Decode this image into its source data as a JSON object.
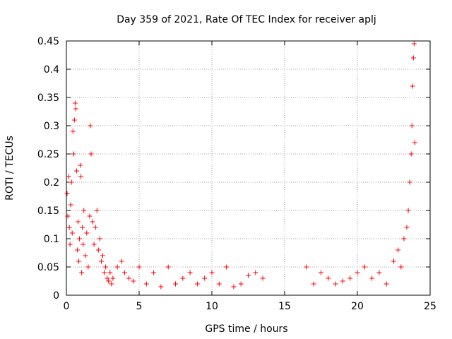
{
  "chart_data": {
    "type": "scatter",
    "title": "Day 359 of 2021, Rate Of TEC Index for receiver aplj",
    "xlabel": "GPS time / hours",
    "ylabel": "ROTI / TECUs",
    "xlim": [
      0,
      25
    ],
    "ylim": [
      0,
      0.45
    ],
    "x_ticks": [
      0,
      5,
      10,
      15,
      20,
      25
    ],
    "x_tick_labels": [
      "0",
      "5",
      "10",
      "15",
      "20",
      "25"
    ],
    "y_ticks": [
      0,
      0.05,
      0.1,
      0.15,
      0.2,
      0.25,
      0.3,
      0.35,
      0.4,
      0.45
    ],
    "y_tick_labels": [
      "0",
      "0.05",
      "0.1",
      "0.15",
      "0.2",
      "0.25",
      "0.3",
      "0.35",
      "0.4",
      "0.45"
    ],
    "grid": true,
    "marker": "+",
    "series": [
      {
        "name": "ROTI",
        "color": "#ff0000",
        "points": [
          [
            0.05,
            0.18
          ],
          [
            0.1,
            0.14
          ],
          [
            0.15,
            0.21
          ],
          [
            0.2,
            0.12
          ],
          [
            0.25,
            0.09
          ],
          [
            0.3,
            0.16
          ],
          [
            0.35,
            0.2
          ],
          [
            0.4,
            0.11
          ],
          [
            0.45,
            0.29
          ],
          [
            0.5,
            0.25
          ],
          [
            0.55,
            0.31
          ],
          [
            0.6,
            0.34
          ],
          [
            0.65,
            0.33
          ],
          [
            0.7,
            0.22
          ],
          [
            0.75,
            0.08
          ],
          [
            0.8,
            0.13
          ],
          [
            0.85,
            0.06
          ],
          [
            0.9,
            0.1
          ],
          [
            0.95,
            0.23
          ],
          [
            1.0,
            0.21
          ],
          [
            1.05,
            0.04
          ],
          [
            1.1,
            0.12
          ],
          [
            1.15,
            0.09
          ],
          [
            1.2,
            0.15
          ],
          [
            1.3,
            0.07
          ],
          [
            1.4,
            0.11
          ],
          [
            1.5,
            0.05
          ],
          [
            1.6,
            0.14
          ],
          [
            1.65,
            0.3
          ],
          [
            1.7,
            0.25
          ],
          [
            1.8,
            0.13
          ],
          [
            1.9,
            0.09
          ],
          [
            2.0,
            0.12
          ],
          [
            2.1,
            0.15
          ],
          [
            2.2,
            0.08
          ],
          [
            2.3,
            0.1
          ],
          [
            2.4,
            0.06
          ],
          [
            2.5,
            0.07
          ],
          [
            2.6,
            0.04
          ],
          [
            2.7,
            0.05
          ],
          [
            2.8,
            0.03
          ],
          [
            2.9,
            0.025
          ],
          [
            3.0,
            0.04
          ],
          [
            3.1,
            0.02
          ],
          [
            3.2,
            0.03
          ],
          [
            3.5,
            0.05
          ],
          [
            3.8,
            0.06
          ],
          [
            4.0,
            0.04
          ],
          [
            4.3,
            0.03
          ],
          [
            4.6,
            0.025
          ],
          [
            5.0,
            0.05
          ],
          [
            5.5,
            0.02
          ],
          [
            6.0,
            0.04
          ],
          [
            6.5,
            0.015
          ],
          [
            7.0,
            0.05
          ],
          [
            7.5,
            0.02
          ],
          [
            8.0,
            0.03
          ],
          [
            8.5,
            0.04
          ],
          [
            9.0,
            0.02
          ],
          [
            9.5,
            0.03
          ],
          [
            10.0,
            0.04
          ],
          [
            10.5,
            0.02
          ],
          [
            11.0,
            0.05
          ],
          [
            11.5,
            0.015
          ],
          [
            12.0,
            0.02
          ],
          [
            12.5,
            0.035
          ],
          [
            13.0,
            0.04
          ],
          [
            13.5,
            0.03
          ],
          [
            16.5,
            0.05
          ],
          [
            17.0,
            0.02
          ],
          [
            17.5,
            0.04
          ],
          [
            18.0,
            0.03
          ],
          [
            18.5,
            0.02
          ],
          [
            19.0,
            0.025
          ],
          [
            19.5,
            0.03
          ],
          [
            20.0,
            0.04
          ],
          [
            20.5,
            0.05
          ],
          [
            21.0,
            0.03
          ],
          [
            21.5,
            0.04
          ],
          [
            22.0,
            0.02
          ],
          [
            22.5,
            0.06
          ],
          [
            22.8,
            0.08
          ],
          [
            23.0,
            0.05
          ],
          [
            23.2,
            0.1
          ],
          [
            23.4,
            0.12
          ],
          [
            23.5,
            0.15
          ],
          [
            23.6,
            0.2
          ],
          [
            23.7,
            0.25
          ],
          [
            23.75,
            0.3
          ],
          [
            23.8,
            0.37
          ],
          [
            23.85,
            0.42
          ],
          [
            23.9,
            0.445
          ],
          [
            23.95,
            0.27
          ]
        ]
      }
    ]
  }
}
